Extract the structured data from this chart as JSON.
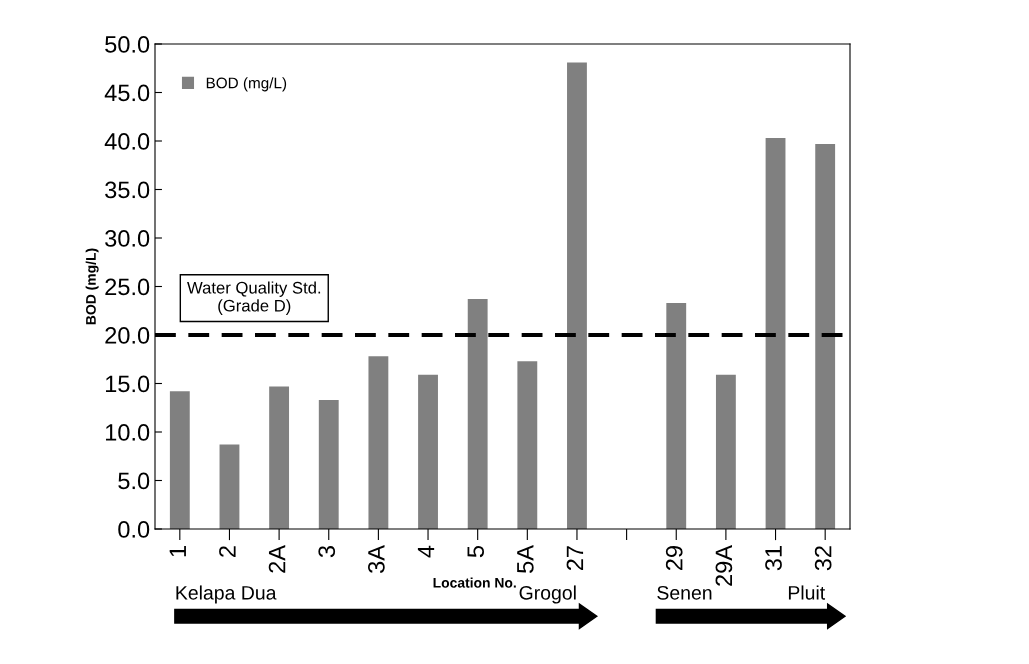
{
  "chart_data": {
    "type": "bar",
    "ylabel": "BOD (mg/L)",
    "xlabel": "Location No.",
    "categories": [
      "1",
      "2",
      "2A",
      "3",
      "3A",
      "4",
      "5",
      "5A",
      "27",
      null,
      "29",
      "29A",
      "31",
      "32"
    ],
    "series": [
      {
        "name": "BOD (mg/L)",
        "color": "#808080",
        "values": [
          14.2,
          8.7,
          14.7,
          13.3,
          17.8,
          15.9,
          23.7,
          17.3,
          48.1,
          null,
          23.3,
          15.9,
          40.3,
          39.7
        ]
      }
    ],
    "ylim": [
      0,
      50
    ],
    "yticks": [
      {
        "value": 0,
        "label": "0.0"
      },
      {
        "value": 5,
        "label": "5.0"
      },
      {
        "value": 10,
        "label": "10.0"
      },
      {
        "value": 15,
        "label": "15.0"
      },
      {
        "value": 20,
        "label": "20.0"
      },
      {
        "value": 25,
        "label": "25.0"
      },
      {
        "value": 30,
        "label": "30.0"
      },
      {
        "value": 35,
        "label": "35.0"
      },
      {
        "value": 40,
        "label": "40.0"
      },
      {
        "value": 45,
        "label": "45.0"
      },
      {
        "value": 50,
        "label": "50.0"
      }
    ],
    "ref_lines": [
      {
        "axis": "y",
        "value": 20,
        "label": "Water Quality Std.\n(Grade D)",
        "color": "#000000",
        "line_style": "dashed"
      }
    ],
    "annotations": [
      "Kelapa Dua",
      "Grogol",
      "Senen",
      "Pluit"
    ],
    "grid": false,
    "legend": "top left"
  }
}
